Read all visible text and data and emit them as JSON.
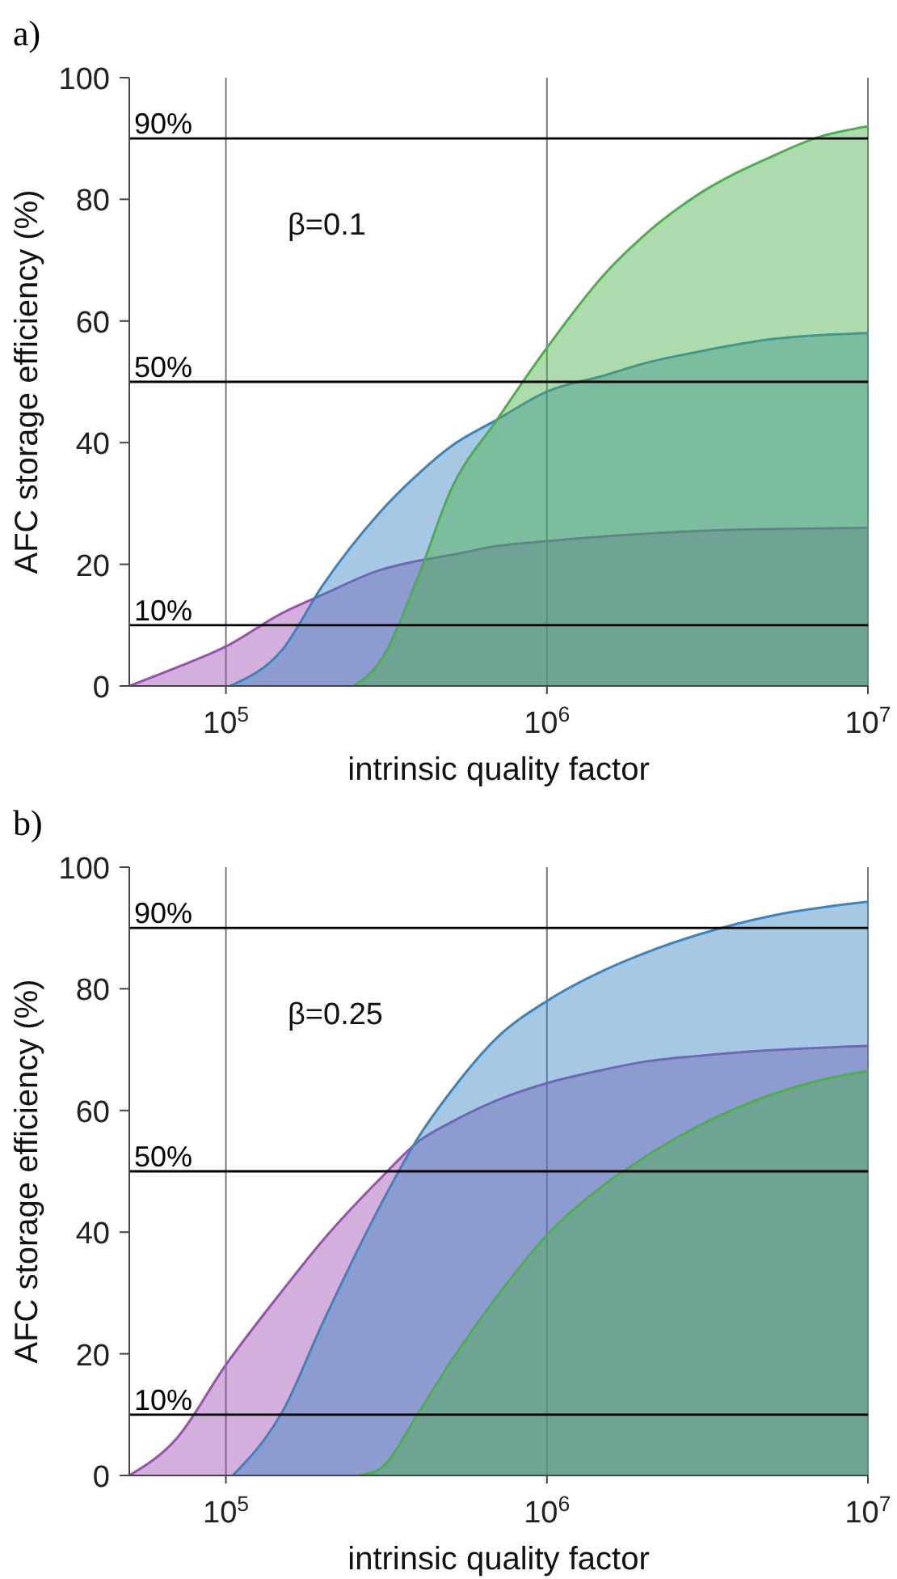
{
  "chart_data": [
    {
      "type": "area",
      "title": "a)",
      "xlabel": "intrinsic quality factor",
      "ylabel": "AFC storage efficiency (%)",
      "log": "x",
      "grid": "x",
      "annotations": [
        "β=0.1"
      ],
      "xlim": [
        50000,
        10000000
      ],
      "xticks": [
        {
          "value": 100000,
          "label": "10$^{5}$"
        },
        {
          "value": 1000000,
          "label": "10$^{6}$"
        },
        {
          "value": 10000000,
          "label": "10$^{7}$"
        }
      ],
      "ylim": [
        0,
        100
      ],
      "yticks": [
        0,
        20,
        40,
        60,
        80,
        100
      ],
      "ref_lines": [
        {
          "axis": "y",
          "value": 90,
          "label": "90%",
          "color": "#000000"
        },
        {
          "axis": "y",
          "value": 50,
          "label": "50%",
          "color": "#000000"
        },
        {
          "axis": "y",
          "value": 10,
          "label": "10%",
          "color": "#000000"
        }
      ],
      "series": [
        {
          "color": "#9b4fb0",
          "x": [
            50000,
            70000,
            100000,
            150000,
            200000,
            300000,
            400000,
            500000,
            700000,
            1000000,
            2000000,
            3000000,
            5000000,
            10000000
          ],
          "values": [
            0,
            3,
            6.5,
            12,
            15,
            19,
            20.6,
            21.5,
            23,
            23.8,
            25,
            25.5,
            25.8,
            26
          ]
        },
        {
          "color": "#3a85c0",
          "x": [
            103000,
            150000,
            200000,
            300000,
            400000,
            500000,
            700000,
            1000000,
            1500000,
            2000000,
            3000000,
            5000000,
            10000000
          ],
          "values": [
            0,
            6,
            16.5,
            28.4,
            35,
            39.3,
            43.8,
            48.4,
            51,
            53,
            55,
            57,
            58
          ]
        },
        {
          "color": "#4bb04b",
          "x": [
            250000,
            300000,
            400000,
            500000,
            700000,
            1000000,
            1500000,
            2000000,
            3000000,
            5000000,
            7000000,
            10000000
          ],
          "values": [
            0,
            3.8,
            18.4,
            32,
            43.8,
            55.6,
            67.5,
            74,
            81,
            87,
            90.2,
            92
          ]
        }
      ]
    },
    {
      "type": "area",
      "title": "b)",
      "xlabel": "intrinsic quality factor",
      "ylabel": "AFC storage efficiency (%)",
      "log": "x",
      "grid": "x",
      "annotations": [
        "β=0.25"
      ],
      "xlim": [
        50000,
        10000000
      ],
      "xticks": [
        {
          "value": 100000,
          "label": "10$^{5}$"
        },
        {
          "value": 1000000,
          "label": "10$^{6}$"
        },
        {
          "value": 10000000,
          "label": "10$^{7}$"
        }
      ],
      "ylim": [
        0,
        100
      ],
      "yticks": [
        0,
        20,
        40,
        60,
        80,
        100
      ],
      "ref_lines": [
        {
          "axis": "y",
          "value": 90,
          "label": "90%",
          "color": "#000000"
        },
        {
          "axis": "y",
          "value": 50,
          "label": "50%",
          "color": "#000000"
        },
        {
          "axis": "y",
          "value": 10,
          "label": "10%",
          "color": "#000000"
        }
      ],
      "series": [
        {
          "color": "#9b4fb0",
          "x": [
            50000,
            70000,
            100000,
            150000,
            200000,
            300000,
            400000,
            500000,
            700000,
            1000000,
            1500000,
            2000000,
            3000000,
            5000000,
            10000000
          ],
          "values": [
            0,
            6,
            18.2,
            30.4,
            38.6,
            48.6,
            55,
            58,
            61.7,
            64.5,
            66.7,
            68,
            69,
            69.9,
            70.6
          ]
        },
        {
          "color": "#3a85c0",
          "x": [
            105000,
            150000,
            200000,
            300000,
            400000,
            500000,
            700000,
            1000000,
            1500000,
            2000000,
            3000000,
            5000000,
            10000000
          ],
          "values": [
            0,
            10.5,
            25,
            44,
            55.8,
            63,
            72,
            78,
            83,
            85.8,
            89,
            92,
            94.3
          ]
        },
        {
          "color": "#4bb04b",
          "x": [
            260000,
            300000,
            400000,
            500000,
            700000,
            1000000,
            1500000,
            2000000,
            3000000,
            5000000,
            7000000,
            10000000
          ],
          "values": [
            0,
            1,
            10.5,
            18.6,
            29.5,
            39.5,
            47.7,
            52.2,
            57.6,
            62.6,
            64.9,
            66.5
          ]
        }
      ]
    }
  ]
}
